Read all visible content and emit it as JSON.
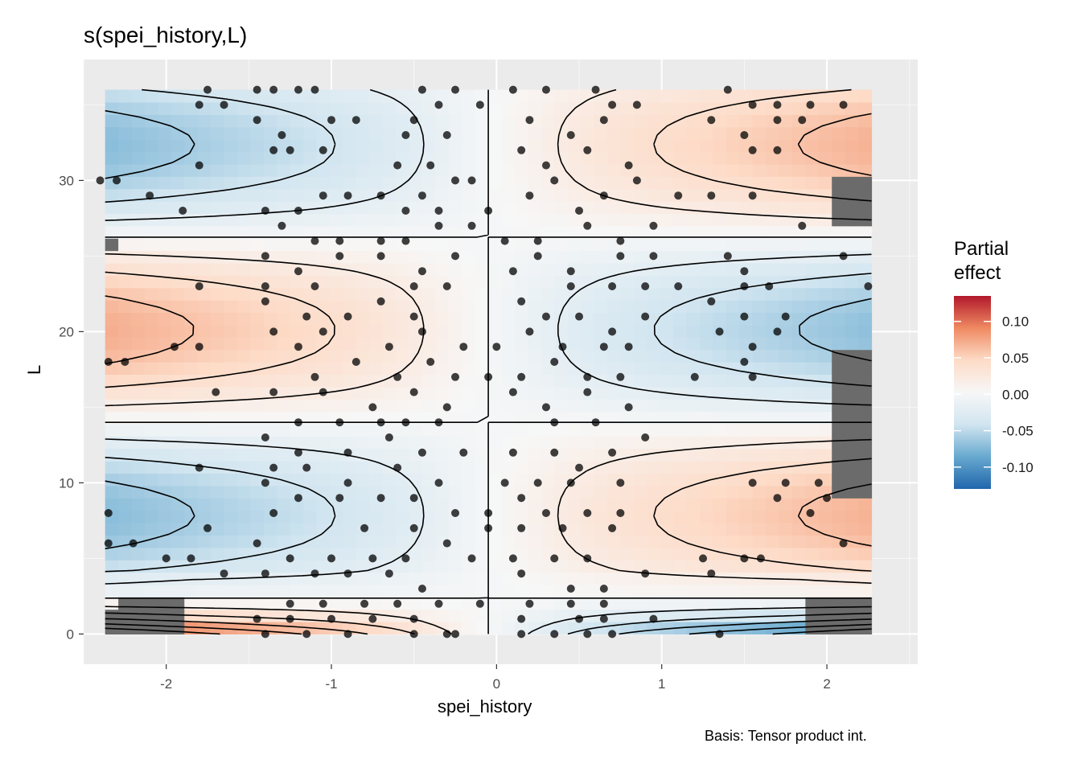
{
  "chart_data": {
    "type": "heatmap",
    "title": "s(spei_history,L)",
    "xlabel": "spei_history",
    "ylabel": "L",
    "caption": "Basis: Tensor product int.",
    "xlim": [
      -2.5,
      2.55
    ],
    "ylim": [
      -2,
      38
    ],
    "x_ticks": [
      -2,
      -1,
      0,
      1,
      2
    ],
    "y_ticks": [
      0,
      10,
      20,
      30
    ],
    "x_tick_labels": [
      "-2",
      "-1",
      "0",
      "1",
      "2"
    ],
    "y_tick_labels": [
      "0",
      "10",
      "20",
      "30"
    ],
    "grid": true,
    "legend": {
      "title_line1": "Partial",
      "title_line2": "effect",
      "placement": "right",
      "range": [
        -0.13,
        0.135
      ],
      "ticks": [
        0.1,
        0.05,
        0.0,
        -0.05,
        -0.1
      ],
      "tick_labels": [
        "0.10",
        "0.05",
        "0.00",
        "-0.05",
        "-0.10"
      ],
      "colors": [
        "#b2182b",
        "#ef8a62",
        "#fddbc7",
        "#f7f7f7",
        "#d1e5f0",
        "#67a9cf",
        "#2166ac"
      ]
    },
    "data_region": {
      "x": [
        -2.37,
        2.27
      ],
      "y": [
        0,
        36
      ]
    },
    "excluded_color": "#6b6b6b",
    "contour_color": "#000000",
    "point_color": "#000000",
    "points": [
      [
        -1.75,
        36
      ],
      [
        -1.65,
        35
      ],
      [
        -1.8,
        35
      ],
      [
        -1.45,
        36
      ],
      [
        -1.35,
        36
      ],
      [
        -1.2,
        36
      ],
      [
        -1.1,
        36
      ],
      [
        -0.45,
        36
      ],
      [
        -0.35,
        35
      ],
      [
        -0.25,
        36
      ],
      [
        -0.5,
        34
      ],
      [
        -0.3,
        33
      ],
      [
        -0.1,
        35
      ],
      [
        0.1,
        36
      ],
      [
        0.3,
        36
      ],
      [
        0.6,
        36
      ],
      [
        0.7,
        35
      ],
      [
        0.85,
        35
      ],
      [
        1.4,
        36
      ],
      [
        1.55,
        35
      ],
      [
        1.7,
        35
      ],
      [
        1.9,
        35
      ],
      [
        2.1,
        35
      ],
      [
        -1.45,
        34
      ],
      [
        -1.3,
        33
      ],
      [
        -1.0,
        34
      ],
      [
        -0.85,
        34
      ],
      [
        -0.55,
        33
      ],
      [
        0.2,
        34
      ],
      [
        0.45,
        33
      ],
      [
        0.65,
        34
      ],
      [
        1.3,
        34
      ],
      [
        1.5,
        33
      ],
      [
        1.7,
        34
      ],
      [
        1.85,
        34
      ],
      [
        -1.8,
        31
      ],
      [
        -1.35,
        32
      ],
      [
        -1.25,
        32
      ],
      [
        -1.05,
        32
      ],
      [
        -0.6,
        31
      ],
      [
        -0.4,
        31
      ],
      [
        -0.25,
        30
      ],
      [
        0.15,
        32
      ],
      [
        0.3,
        31
      ],
      [
        0.55,
        32
      ],
      [
        0.8,
        31
      ],
      [
        1.55,
        32
      ],
      [
        1.7,
        32
      ],
      [
        -2.3,
        30
      ],
      [
        -2.4,
        30
      ],
      [
        -2.1,
        29
      ],
      [
        -1.9,
        28
      ],
      [
        -1.4,
        28
      ],
      [
        -1.2,
        28
      ],
      [
        -1.05,
        29
      ],
      [
        -0.9,
        29
      ],
      [
        -0.7,
        29
      ],
      [
        -0.55,
        28
      ],
      [
        -0.45,
        29
      ],
      [
        -0.35,
        28
      ],
      [
        -0.15,
        30
      ],
      [
        -0.05,
        28
      ],
      [
        0.2,
        29
      ],
      [
        0.35,
        30
      ],
      [
        0.5,
        28
      ],
      [
        0.65,
        29
      ],
      [
        0.85,
        30
      ],
      [
        1.1,
        29
      ],
      [
        1.3,
        29
      ],
      [
        1.55,
        29
      ],
      [
        -1.3,
        27
      ],
      [
        -1.1,
        26
      ],
      [
        -0.95,
        26
      ],
      [
        -0.7,
        26
      ],
      [
        -0.55,
        26
      ],
      [
        -0.35,
        27
      ],
      [
        -0.15,
        27
      ],
      [
        0.05,
        26
      ],
      [
        0.25,
        26
      ],
      [
        0.55,
        27
      ],
      [
        0.75,
        26
      ],
      [
        0.95,
        27
      ],
      [
        1.85,
        27
      ],
      [
        2.1,
        25
      ],
      [
        -1.4,
        25
      ],
      [
        -1.2,
        24
      ],
      [
        -0.95,
        25
      ],
      [
        -0.7,
        25
      ],
      [
        -0.45,
        24
      ],
      [
        -0.25,
        25
      ],
      [
        0.1,
        24
      ],
      [
        0.25,
        25
      ],
      [
        0.45,
        24
      ],
      [
        0.75,
        25
      ],
      [
        0.95,
        25
      ],
      [
        1.4,
        25
      ],
      [
        1.5,
        24
      ],
      [
        -1.8,
        23
      ],
      [
        -1.4,
        23
      ],
      [
        -1.1,
        23
      ],
      [
        -0.5,
        23
      ],
      [
        -0.3,
        23
      ],
      [
        0.45,
        23
      ],
      [
        0.7,
        23
      ],
      [
        0.9,
        23
      ],
      [
        1.1,
        23
      ],
      [
        1.5,
        23
      ],
      [
        1.65,
        23
      ],
      [
        2.25,
        23
      ],
      [
        -1.4,
        22
      ],
      [
        -1.15,
        21
      ],
      [
        -0.9,
        21
      ],
      [
        -0.7,
        22
      ],
      [
        -0.5,
        21
      ],
      [
        0.15,
        22
      ],
      [
        0.3,
        21
      ],
      [
        0.5,
        21
      ],
      [
        0.7,
        20
      ],
      [
        0.9,
        21
      ],
      [
        1.3,
        22
      ],
      [
        1.5,
        21
      ],
      [
        1.75,
        21
      ],
      [
        -1.35,
        20
      ],
      [
        -1.2,
        19
      ],
      [
        -1.05,
        20
      ],
      [
        -0.65,
        19
      ],
      [
        -0.45,
        20
      ],
      [
        -0.2,
        19
      ],
      [
        0.0,
        19
      ],
      [
        0.2,
        20
      ],
      [
        0.4,
        19
      ],
      [
        0.65,
        19
      ],
      [
        0.8,
        19
      ],
      [
        1.35,
        20
      ],
      [
        1.55,
        19
      ],
      [
        1.7,
        20
      ],
      [
        -2.35,
        18
      ],
      [
        -2.25,
        18
      ],
      [
        -1.95,
        19
      ],
      [
        -1.8,
        19
      ],
      [
        -1.1,
        17
      ],
      [
        -0.85,
        18
      ],
      [
        -0.6,
        17
      ],
      [
        -0.4,
        18
      ],
      [
        -0.25,
        17
      ],
      [
        -0.05,
        17
      ],
      [
        0.15,
        17
      ],
      [
        0.35,
        18
      ],
      [
        0.55,
        17
      ],
      [
        0.75,
        17
      ],
      [
        1.2,
        17
      ],
      [
        1.5,
        18
      ],
      [
        1.55,
        17
      ],
      [
        -1.7,
        16
      ],
      [
        -1.35,
        16
      ],
      [
        -1.05,
        16
      ],
      [
        -0.75,
        15
      ],
      [
        -0.5,
        16
      ],
      [
        -0.3,
        15
      ],
      [
        0.1,
        16
      ],
      [
        0.3,
        15
      ],
      [
        0.55,
        16
      ],
      [
        0.8,
        15
      ],
      [
        -1.2,
        14
      ],
      [
        -0.95,
        14
      ],
      [
        -0.7,
        14
      ],
      [
        -0.55,
        14
      ],
      [
        -0.35,
        14
      ],
      [
        0.35,
        14
      ],
      [
        0.6,
        14
      ],
      [
        -1.4,
        13
      ],
      [
        -1.2,
        12
      ],
      [
        -0.9,
        12
      ],
      [
        -0.65,
        13
      ],
      [
        -0.45,
        12
      ],
      [
        -0.2,
        12
      ],
      [
        0.1,
        12
      ],
      [
        0.35,
        12
      ],
      [
        0.5,
        11
      ],
      [
        0.7,
        12
      ],
      [
        0.9,
        13
      ],
      [
        -1.35,
        11
      ],
      [
        -1.15,
        11
      ],
      [
        -0.9,
        10
      ],
      [
        -0.6,
        11
      ],
      [
        -0.35,
        10
      ],
      [
        0.05,
        10
      ],
      [
        0.25,
        10
      ],
      [
        0.45,
        10
      ],
      [
        0.75,
        10
      ],
      [
        -1.8,
        11
      ],
      [
        -1.4,
        10
      ],
      [
        -1.2,
        9
      ],
      [
        -0.95,
        9
      ],
      [
        -0.7,
        9
      ],
      [
        -0.5,
        9
      ],
      [
        -0.25,
        8
      ],
      [
        -0.05,
        8
      ],
      [
        0.15,
        9
      ],
      [
        0.3,
        8
      ],
      [
        0.55,
        8
      ],
      [
        0.75,
        8
      ],
      [
        1.55,
        10
      ],
      [
        1.75,
        10
      ],
      [
        1.95,
        10
      ],
      [
        1.7,
        9
      ],
      [
        1.9,
        8
      ],
      [
        2.0,
        9
      ],
      [
        -2.35,
        8
      ],
      [
        -1.35,
        8
      ],
      [
        -1.75,
        7
      ],
      [
        -0.8,
        7
      ],
      [
        -0.5,
        7
      ],
      [
        -0.3,
        6
      ],
      [
        -0.05,
        7
      ],
      [
        0.15,
        7
      ],
      [
        0.4,
        7
      ],
      [
        0.7,
        7
      ],
      [
        2.1,
        6
      ],
      [
        -2.35,
        6
      ],
      [
        -2.2,
        6
      ],
      [
        -2.0,
        5
      ],
      [
        -1.85,
        5
      ],
      [
        -1.45,
        6
      ],
      [
        -1.25,
        5
      ],
      [
        -1.0,
        5
      ],
      [
        -0.75,
        5
      ],
      [
        -0.55,
        5
      ],
      [
        -0.15,
        5
      ],
      [
        0.1,
        5
      ],
      [
        0.35,
        5
      ],
      [
        0.55,
        5
      ],
      [
        1.25,
        5
      ],
      [
        1.3,
        4
      ],
      [
        1.5,
        5
      ],
      [
        1.6,
        5
      ],
      [
        -1.65,
        4
      ],
      [
        -1.4,
        4
      ],
      [
        -1.1,
        4
      ],
      [
        -0.9,
        4
      ],
      [
        -0.65,
        4
      ],
      [
        -0.45,
        3
      ],
      [
        0.15,
        4
      ],
      [
        0.45,
        3
      ],
      [
        0.65,
        3
      ],
      [
        0.9,
        4
      ],
      [
        -1.25,
        2
      ],
      [
        -1.05,
        2
      ],
      [
        -0.8,
        2
      ],
      [
        -0.6,
        2
      ],
      [
        -0.35,
        2
      ],
      [
        -0.1,
        2
      ],
      [
        0.2,
        2
      ],
      [
        0.45,
        2
      ],
      [
        0.65,
        2
      ],
      [
        -1.45,
        1
      ],
      [
        -1.25,
        1
      ],
      [
        -1.0,
        1
      ],
      [
        -0.75,
        1
      ],
      [
        -0.5,
        1
      ],
      [
        -0.3,
        0
      ],
      [
        0.15,
        1
      ],
      [
        0.5,
        1
      ],
      [
        0.65,
        1
      ],
      [
        0.95,
        1
      ],
      [
        -1.4,
        0
      ],
      [
        -1.15,
        0
      ],
      [
        -0.9,
        0
      ],
      [
        -0.5,
        0
      ],
      [
        -0.25,
        0
      ],
      [
        0.15,
        0
      ],
      [
        0.35,
        0
      ],
      [
        0.55,
        0
      ],
      [
        0.7,
        0
      ],
      [
        1.35,
        0
      ]
    ]
  }
}
